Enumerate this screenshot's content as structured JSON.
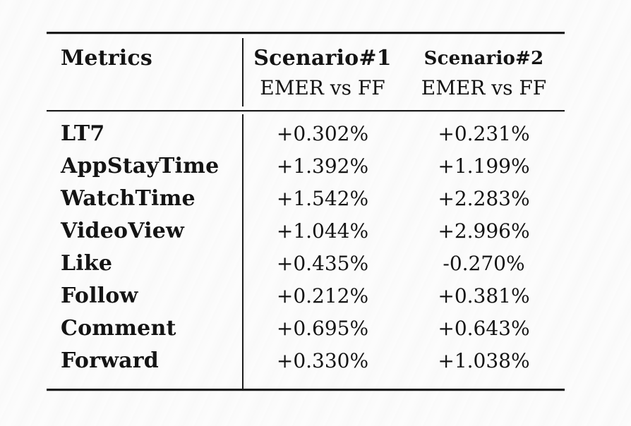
{
  "page": {
    "background_color": "#fcfcfc",
    "text_color": "#141414",
    "rule_color": "#1b1b1b"
  },
  "table": {
    "header": {
      "metrics_label": "Metrics",
      "columns": [
        {
          "title": "Scenario#1",
          "subtitle": "EMER vs FF"
        },
        {
          "title": "Scenario#2",
          "subtitle": "EMER vs FF"
        }
      ]
    },
    "rows": [
      {
        "metric": "LT7",
        "scenario1": "+0.302%",
        "scenario2": "+0.231%"
      },
      {
        "metric": "AppStayTime",
        "scenario1": "+1.392%",
        "scenario2": "+1.199%"
      },
      {
        "metric": "WatchTime",
        "scenario1": "+1.542%",
        "scenario2": "+2.283%"
      },
      {
        "metric": "VideoView",
        "scenario1": "+1.044%",
        "scenario2": "+2.996%"
      },
      {
        "metric": "Like",
        "scenario1": "+0.435%",
        "scenario2": "-0.270%"
      },
      {
        "metric": "Follow",
        "scenario1": "+0.212%",
        "scenario2": "+0.381%"
      },
      {
        "metric": "Comment",
        "scenario1": "+0.695%",
        "scenario2": "+0.643%"
      },
      {
        "metric": "Forward",
        "scenario1": "+0.330%",
        "scenario2": "+1.038%"
      }
    ]
  },
  "chart_data": {
    "type": "table",
    "title": "",
    "columns": [
      "Metrics",
      "Scenario#1 EMER vs FF",
      "Scenario#2 EMER vs FF"
    ],
    "categories": [
      "LT7",
      "AppStayTime",
      "WatchTime",
      "VideoView",
      "Like",
      "Follow",
      "Comment",
      "Forward"
    ],
    "series": [
      {
        "name": "Scenario#1 EMER vs FF (%)",
        "values": [
          0.302,
          1.392,
          1.542,
          1.044,
          0.435,
          0.212,
          0.695,
          0.33
        ]
      },
      {
        "name": "Scenario#2 EMER vs FF (%)",
        "values": [
          0.231,
          1.199,
          2.283,
          2.996,
          -0.27,
          0.381,
          0.643,
          1.038
        ]
      }
    ]
  }
}
